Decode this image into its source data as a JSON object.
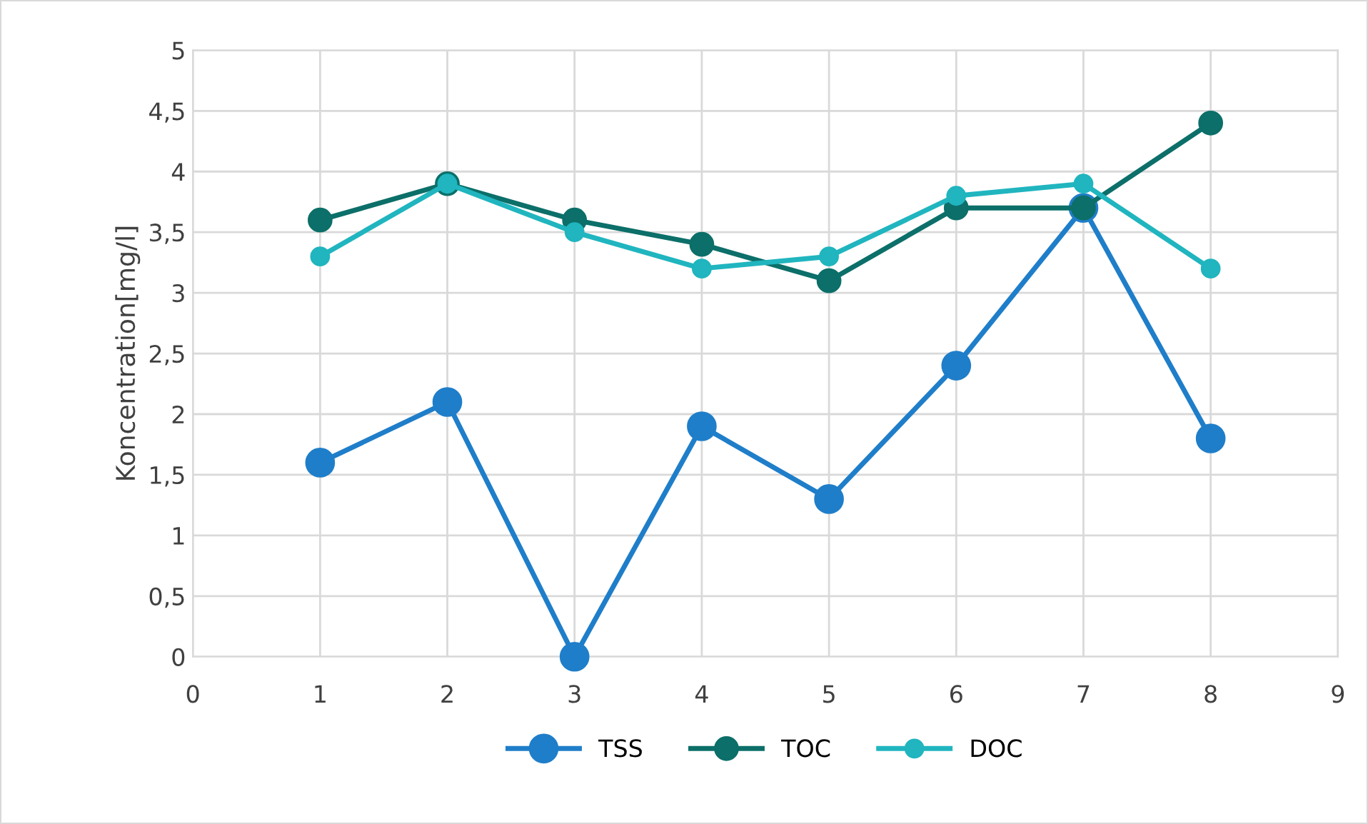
{
  "chart_data": {
    "type": "line",
    "ylabel": "Koncentration[mg/l]",
    "x": [
      1,
      2,
      3,
      4,
      5,
      6,
      7,
      8
    ],
    "series": [
      {
        "name": "TSS",
        "color": "#1f7ec9",
        "values": [
          1.6,
          2.1,
          0,
          1.9,
          1.3,
          2.4,
          3.7,
          1.8
        ]
      },
      {
        "name": "TOC",
        "color": "#0c6f69",
        "values": [
          3.6,
          3.9,
          3.6,
          3.4,
          3.1,
          3.7,
          3.7,
          4.4
        ]
      },
      {
        "name": "DOC",
        "color": "#20b5bf",
        "values": [
          3.3,
          3.9,
          3.5,
          3.2,
          3.3,
          3.8,
          3.9,
          3.2
        ]
      }
    ],
    "xlim": [
      0,
      9
    ],
    "xticks": [
      0,
      1,
      2,
      3,
      4,
      5,
      6,
      7,
      8,
      9
    ],
    "ylim": [
      0,
      5
    ],
    "yticks": [
      0,
      {
        "value": 0.5,
        "label": "0,5"
      },
      1,
      {
        "value": 1.5,
        "label": "1,5"
      },
      2,
      {
        "value": 2.5,
        "label": "2,5"
      },
      3,
      {
        "value": 3.5,
        "label": "3,5"
      },
      4,
      {
        "value": 4.5,
        "label": "4,5"
      },
      5
    ],
    "grid": true,
    "legend": "bottom",
    "marker": "circle",
    "line_style": "solid"
  }
}
